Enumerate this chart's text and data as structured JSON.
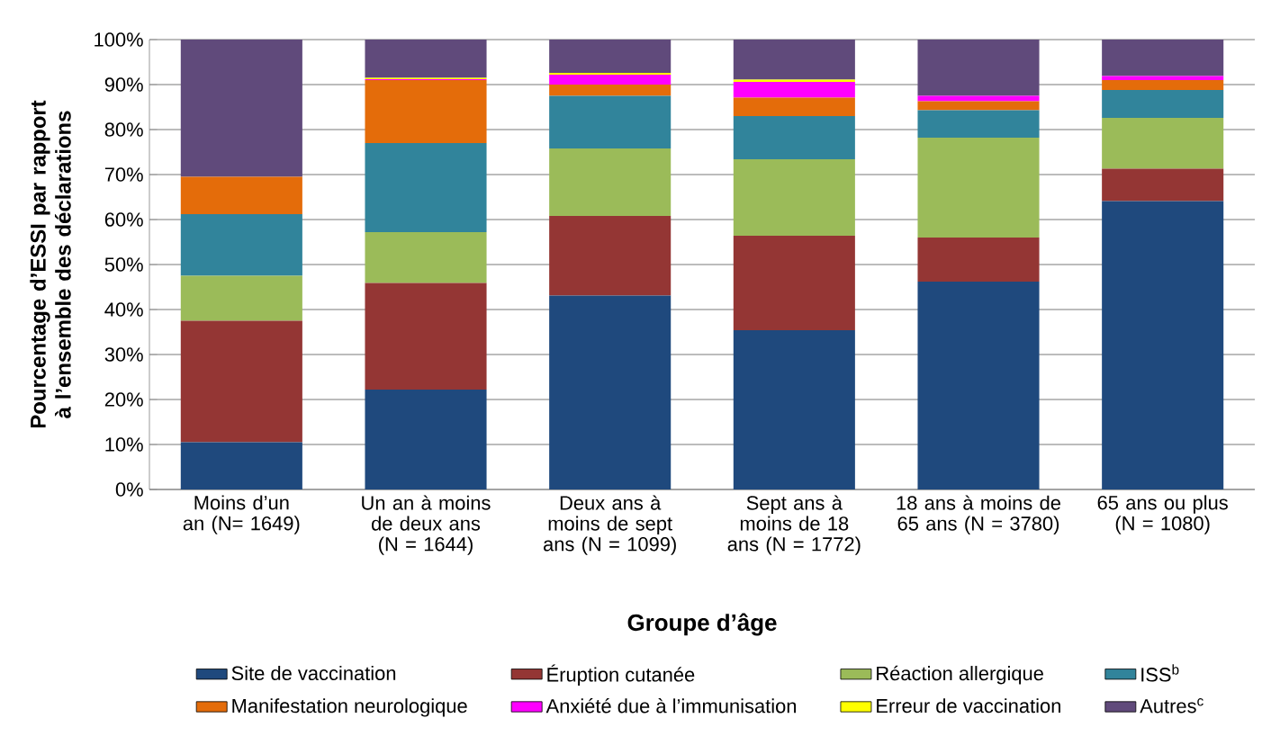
{
  "chart_data": {
    "type": "bar",
    "stacked": true,
    "xlabel": "Groupe d’âge",
    "ylabel": "Pourcentage d’ESSI par rapport à l’ensemble des déclarations",
    "categories": [
      "Moins d’un an (N= 1649)",
      "Un an à moins de deux ans (N = 1644)",
      "Deux ans à moins de sept ans (N = 1099)",
      "Sept ans à moins de 18 ans (N = 1772)",
      "18 ans à moins de 65 ans (N = 3780)",
      "65 ans ou plus (N = 1080)"
    ],
    "series": [
      {
        "name": "Site de vaccination",
        "color": "#1f497d",
        "values": [
          10.5,
          22.2,
          43.1,
          35.4,
          46.2,
          64.1
        ]
      },
      {
        "name": "Éruption cutanée",
        "color": "#943634",
        "values": [
          27,
          23.7,
          17.7,
          21,
          9.8,
          7.2
        ]
      },
      {
        "name": "Réaction allergique",
        "color": "#9bbb59",
        "values": [
          10,
          11.3,
          15,
          17,
          22.2,
          11.3
        ]
      },
      {
        "name": "ISS$^{b}$",
        "color": "#31849b",
        "values": [
          13.7,
          19.8,
          11.7,
          9.6,
          6.1,
          6.2
        ]
      },
      {
        "name": "Manifestation neurologique",
        "color": "#e46c0a",
        "values": [
          8.3,
          14,
          2.5,
          4.1,
          2,
          2.2
        ]
      },
      {
        "name": "Anxiété due à l’immunisation",
        "color": "#ff00ff",
        "values": [
          0,
          0.2,
          2.2,
          3.5,
          1.2,
          0.9
        ]
      },
      {
        "name": "Erreur de vaccination",
        "color": "#ffff00",
        "values": [
          0,
          0.3,
          0.4,
          0.5,
          0,
          0
        ]
      },
      {
        "name": "Autres$^{c}$",
        "color": "#604a7b",
        "values": [
          30.5,
          8.5,
          7.4,
          8.9,
          12.5,
          8.1
        ]
      }
    ],
    "ylim": [
      0,
      100
    ],
    "yticks": [
      {
        "value": 0,
        "label": "0%"
      },
      {
        "value": 10,
        "label": "10%"
      },
      {
        "value": 20,
        "label": "20%"
      },
      {
        "value": 30,
        "label": "30%"
      },
      {
        "value": 40,
        "label": "40%"
      },
      {
        "value": 50,
        "label": "50%"
      },
      {
        "value": 60,
        "label": "60%"
      },
      {
        "value": 70,
        "label": "70%"
      },
      {
        "value": 80,
        "label": "80%"
      },
      {
        "value": 90,
        "label": "90%"
      },
      {
        "value": 100,
        "label": "100%"
      }
    ],
    "grid": "y",
    "legend": "bottom"
  }
}
